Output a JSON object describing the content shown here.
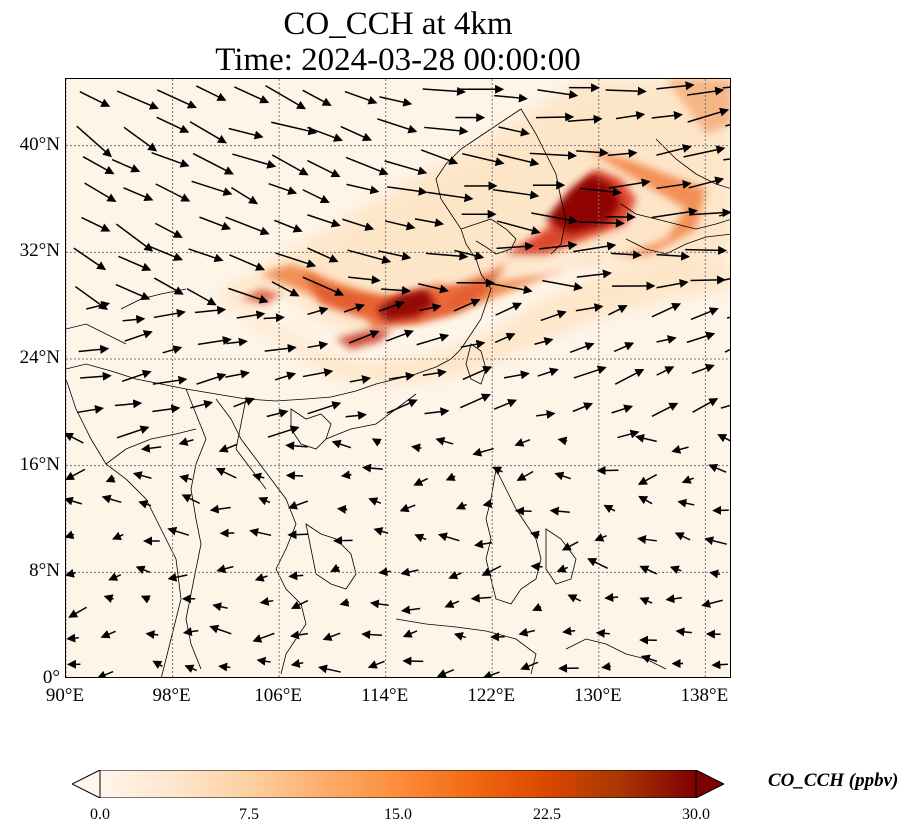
{
  "title": {
    "line1": "CO_CCH at 4km",
    "line2": "Time: 2024-03-28 00:00:00"
  },
  "map": {
    "extent": {
      "lon": [
        90,
        140
      ],
      "lat": [
        0,
        45
      ]
    },
    "gridlines": true,
    "x_ticks": [
      "90°E",
      "98°E",
      "106°E",
      "114°E",
      "122°E",
      "130°E",
      "138°E"
    ],
    "y_ticks": [
      "0°",
      "8°N",
      "16°N",
      "24°N",
      "32°N",
      "40°N"
    ],
    "plume_colors": {
      "background": "#fef5e9",
      "low": "#fdd9ae",
      "mid": "#f07a3a",
      "high": "#c22310",
      "max": "#8b0000"
    }
  },
  "colorbar": {
    "label": "CO_CCH (ppbv)",
    "ticks": [
      "0.0",
      "7.5",
      "15.0",
      "22.5",
      "30.0"
    ],
    "range": [
      0,
      30
    ],
    "extend": "both",
    "colors": [
      "#fff5eb",
      "#fee6ce",
      "#fdd0a2",
      "#fdae6b",
      "#fd8d3c",
      "#f16913",
      "#d94801",
      "#a63603",
      "#7f0000"
    ]
  }
}
